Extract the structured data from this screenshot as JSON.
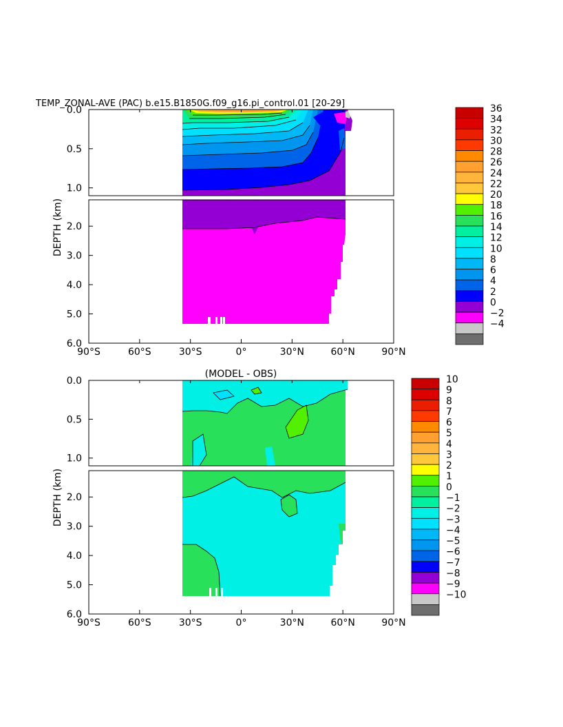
{
  "chart_data": [
    {
      "type": "contour",
      "title": "TEMP_ZONAL-AVE (PAC) b.e15.B1850G.f09_g16.pi_control.01 [20-29]",
      "ylabel": "DEPTH (km)",
      "xlabel": "",
      "x_ticks": [
        "90°S",
        "60°S",
        "30°S",
        "0°",
        "30°N",
        "60°N",
        "90°N"
      ],
      "x_range": [
        -90,
        90
      ],
      "y_upper_ticks": [
        "0.0",
        "0.5",
        "1.0"
      ],
      "y_lower_ticks": [
        "2.0",
        "3.0",
        "4.0",
        "5.0",
        "6.0"
      ],
      "y_range": [
        6.0,
        0.0
      ],
      "upper_panel_depth_range": [
        0.0,
        1.1
      ],
      "colorbar": {
        "levels": [
          "36",
          "34",
          "32",
          "30",
          "28",
          "26",
          "24",
          "22",
          "20",
          "18",
          "16",
          "14",
          "12",
          "10",
          "8",
          "6",
          "4",
          "2",
          "0",
          "−2",
          "−4"
        ],
        "colors": [
          "#c80000",
          "#dc0000",
          "#ec1e00",
          "#ff3a00",
          "#ff8a00",
          "#ffa030",
          "#ffb43c",
          "#ffc83c",
          "#ffff00",
          "#50f000",
          "#28e05a",
          "#00f0a0",
          "#00f0e6",
          "#00e1ff",
          "#00b8f5",
          "#0096f0",
          "#0064e8",
          "#0000ff",
          "#9400d3",
          "#ff00ff",
          "#c8c8c8",
          "#6e6e6e"
        ]
      }
    },
    {
      "type": "contour",
      "title": "(MODEL - OBS)",
      "ylabel": "DEPTH (km)",
      "xlabel": "",
      "x_ticks": [
        "90°S",
        "60°S",
        "30°S",
        "0°",
        "30°N",
        "60°N",
        "90°N"
      ],
      "x_range": [
        -90,
        90
      ],
      "y_upper_ticks": [
        "0.0",
        "0.5",
        "1.0"
      ],
      "y_lower_ticks": [
        "2.0",
        "3.0",
        "4.0",
        "5.0",
        "6.0"
      ],
      "y_range": [
        6.0,
        0.0
      ],
      "upper_panel_depth_range": [
        0.0,
        1.1
      ],
      "colorbar": {
        "levels": [
          "10",
          "9",
          "8",
          "7",
          "6",
          "5",
          "4",
          "3",
          "2",
          "1",
          "0",
          "−1",
          "−2",
          "−3",
          "−4",
          "−5",
          "−6",
          "−7",
          "−8",
          "−9",
          "−10"
        ],
        "colors": [
          "#c80000",
          "#dc0000",
          "#ec1e00",
          "#ff3a00",
          "#ff8a00",
          "#ffa030",
          "#ffb43c",
          "#ffc83c",
          "#ffff00",
          "#50f000",
          "#28e05a",
          "#00f0a0",
          "#00f0e6",
          "#00e1ff",
          "#00b8f5",
          "#0096f0",
          "#0064e8",
          "#0000ff",
          "#9400d3",
          "#ff00ff",
          "#c8c8c8",
          "#6e6e6e"
        ]
      }
    }
  ]
}
